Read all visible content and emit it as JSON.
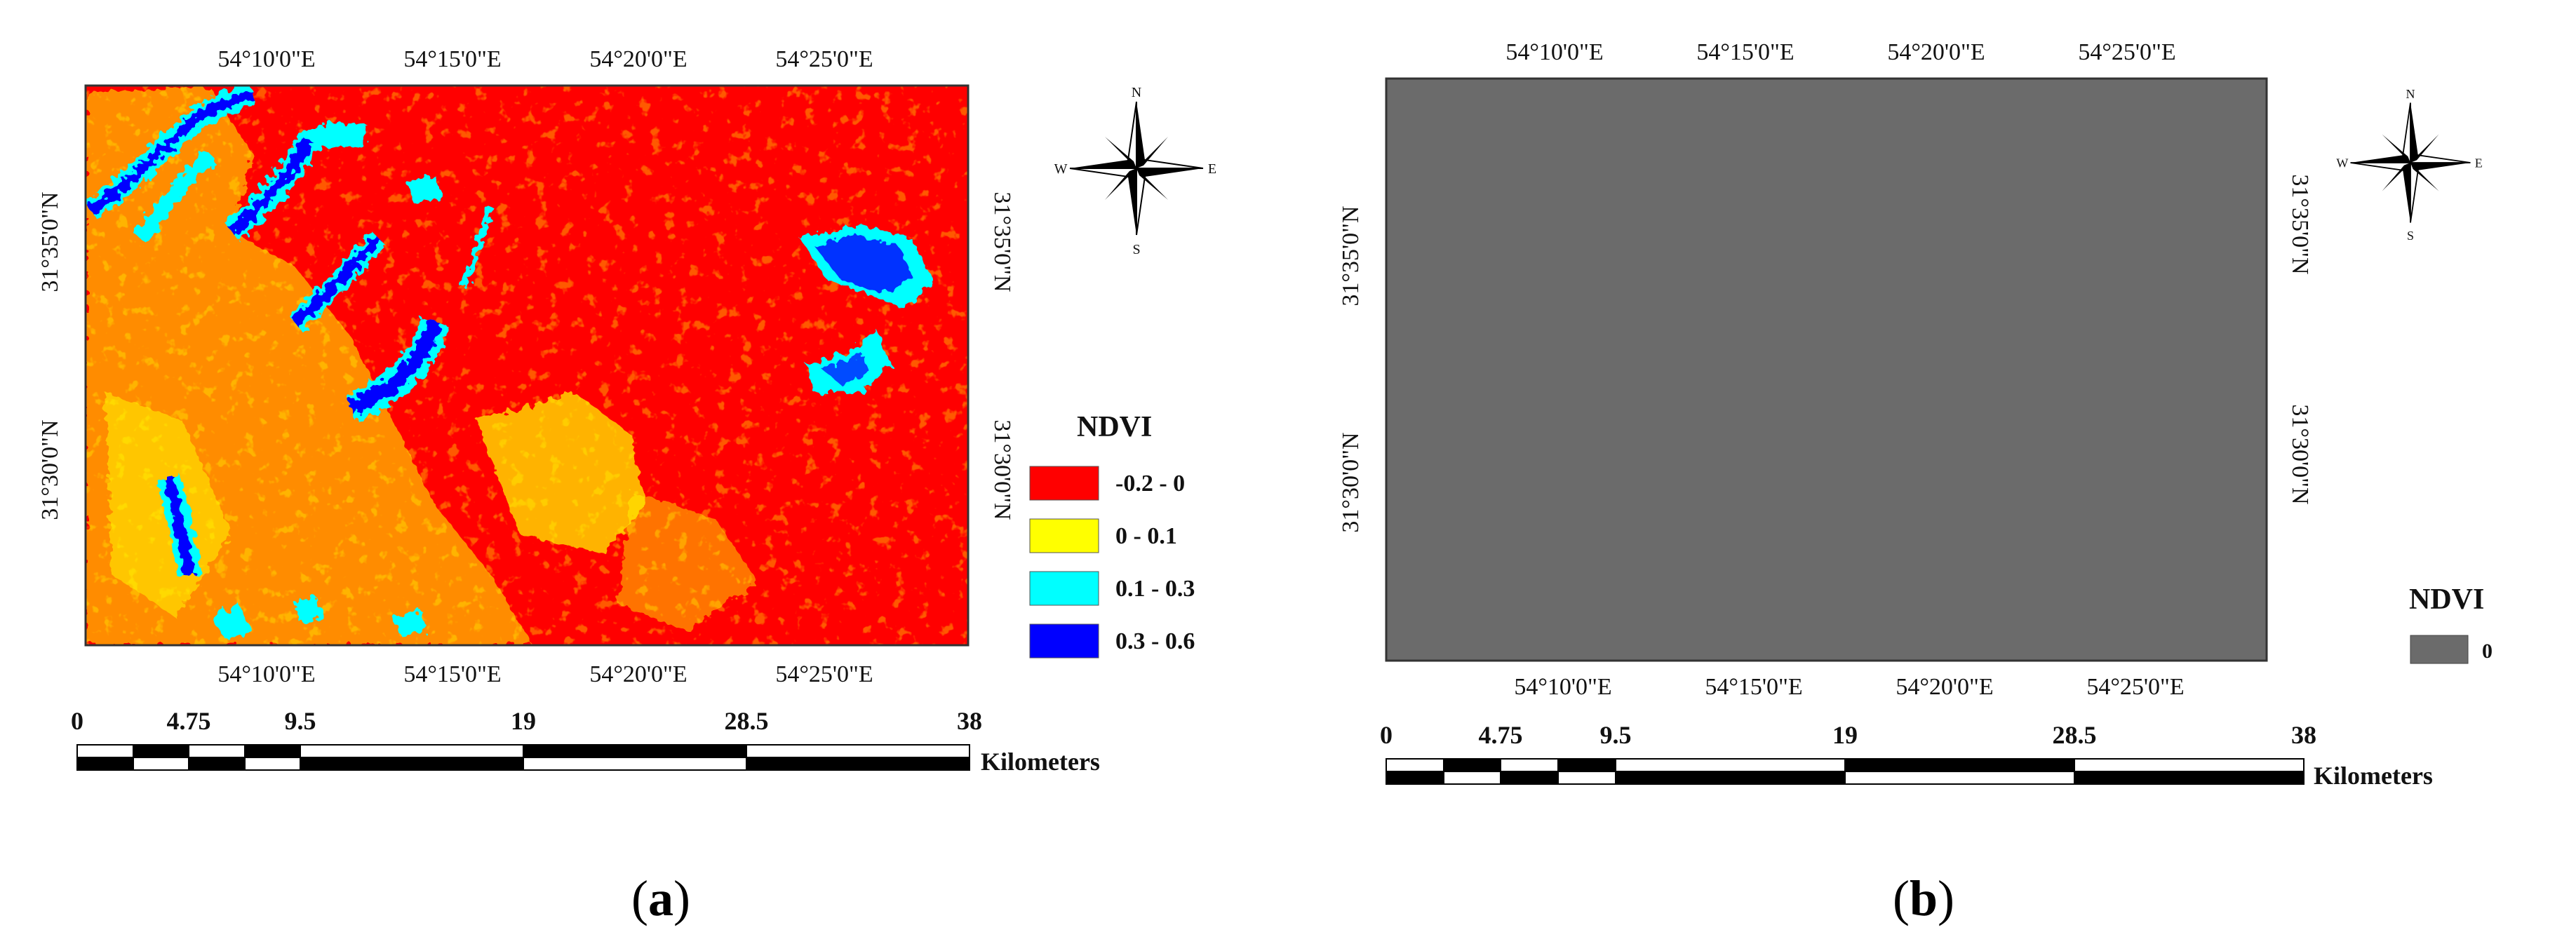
{
  "panels": [
    {
      "id": "a",
      "caption_open": "(",
      "caption_letter": "a",
      "caption_close": ")",
      "lon_ticks_top": [
        "54°10'0\"E",
        "54°15'0\"E",
        "54°20'0\"E",
        "54°25'0\"E"
      ],
      "lon_ticks_bottom": [
        "54°10'0\"E",
        "54°15'0\"E",
        "54°20'0\"E",
        "54°25'0\"E"
      ],
      "lat_ticks": [
        "31°35'0\"N",
        "31°30'0\"N"
      ],
      "legend": {
        "title": "NDVI",
        "classes": [
          {
            "label": "-0.2 - 0",
            "color": "#ff0000"
          },
          {
            "label": "0 - 0.1",
            "color": "#ffff00"
          },
          {
            "label": "0.1 - 0.3",
            "color": "#00ffff"
          },
          {
            "label": "0.3 - 0.6",
            "color": "#0000ff"
          }
        ]
      },
      "scale": {
        "ticks": [
          "0",
          "4.75",
          "9.5",
          "19",
          "28.5",
          "38"
        ],
        "unit": "Kilometers"
      },
      "north_arrow": {
        "icon": "compass-rose-icon",
        "n": "N",
        "s": "S",
        "e": "E",
        "w": "W"
      }
    },
    {
      "id": "b",
      "caption_open": "(",
      "caption_letter": "b",
      "caption_close": ")",
      "map_color": "#6b6b6b",
      "lon_ticks_top": [
        "54°10'0\"E",
        "54°15'0\"E",
        "54°20'0\"E",
        "54°25'0\"E"
      ],
      "lon_ticks_bottom": [
        "54°10'0\"E",
        "54°15'0\"E",
        "54°20'0\"E",
        "54°25'0\"E"
      ],
      "lat_ticks": [
        "31°35'0\"N",
        "31°30'0\"N"
      ],
      "legend": {
        "title": "NDVI",
        "classes": [
          {
            "label": "0",
            "color": "#6b6b6b"
          }
        ]
      },
      "scale": {
        "ticks": [
          "0",
          "4.75",
          "9.5",
          "19",
          "28.5",
          "38"
        ],
        "unit": "Kilometers"
      },
      "north_arrow": {
        "icon": "compass-rose-icon",
        "n": "N",
        "s": "S",
        "e": "E",
        "w": "W"
      }
    }
  ]
}
